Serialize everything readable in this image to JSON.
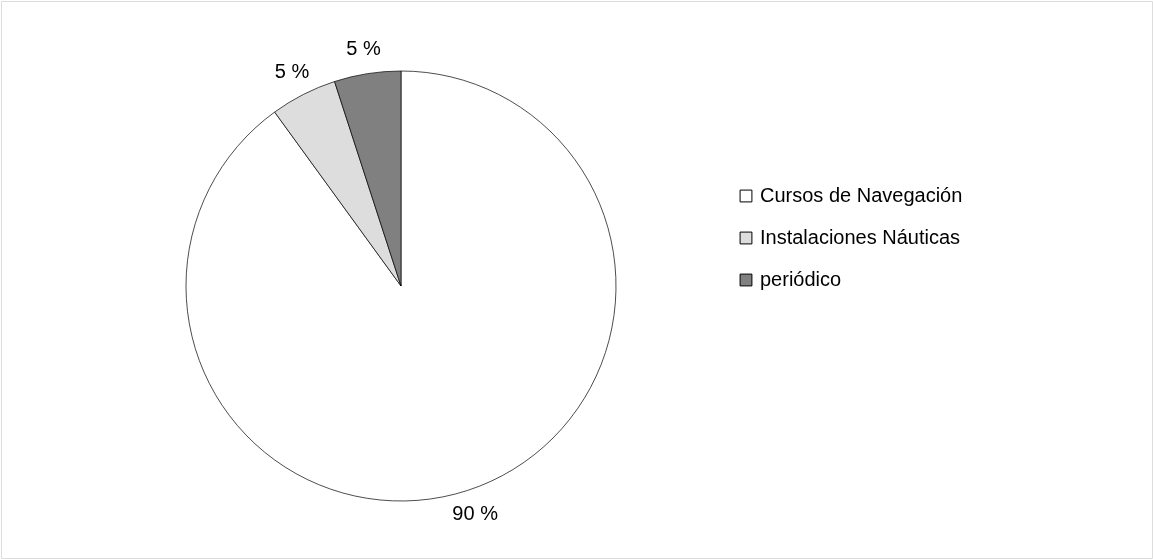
{
  "chart_data": {
    "type": "pie",
    "categories": [
      "Cursos de Navegación",
      "Instalaciones Náuticas",
      "periódico"
    ],
    "values": [
      90,
      5,
      5
    ],
    "colors": [
      "#ffffff",
      "#dddddd",
      "#808080"
    ],
    "value_labels": [
      "90 %",
      "5 %",
      "5 %"
    ],
    "legend": "right"
  }
}
